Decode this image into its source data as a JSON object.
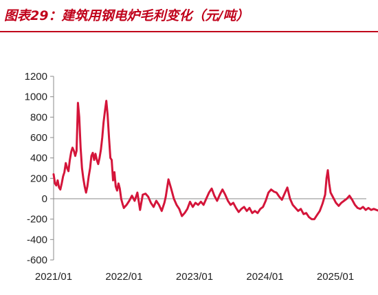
{
  "title": "图表29：建筑用钢电炉毛利变化（元/吨）",
  "colors": {
    "title": "#c0001a",
    "series": "#d4153a",
    "axis": "#888888"
  },
  "chart_data": {
    "type": "line",
    "title": "图表29：建筑用钢电炉毛利变化（元/吨）",
    "xlabel": "",
    "ylabel": "",
    "ylim": [
      -600,
      1200
    ],
    "grid": false,
    "y_ticks": [
      "1200",
      "1000",
      "800",
      "600",
      "400",
      "200",
      "0",
      "-200",
      "-400",
      "-600"
    ],
    "x_ticks": [
      "2021/01",
      "2022/01",
      "2023/01",
      "2024/01",
      "2025/01"
    ],
    "series": [
      {
        "points": [
          [
            "2021-01-01",
            240
          ],
          [
            "2021-01-08",
            150
          ],
          [
            "2021-01-15",
            130
          ],
          [
            "2021-01-22",
            180
          ],
          [
            "2021-01-29",
            110
          ],
          [
            "2021-02-05",
            90
          ],
          [
            "2021-02-12",
            150
          ],
          [
            "2021-02-19",
            220
          ],
          [
            "2021-02-26",
            260
          ],
          [
            "2021-03-05",
            350
          ],
          [
            "2021-03-12",
            300
          ],
          [
            "2021-03-19",
            270
          ],
          [
            "2021-03-26",
            380
          ],
          [
            "2021-04-02",
            460
          ],
          [
            "2021-04-09",
            500
          ],
          [
            "2021-04-16",
            470
          ],
          [
            "2021-04-23",
            420
          ],
          [
            "2021-04-30",
            470
          ],
          [
            "2021-05-07",
            940
          ],
          [
            "2021-05-14",
            800
          ],
          [
            "2021-05-21",
            500
          ],
          [
            "2021-05-28",
            300
          ],
          [
            "2021-06-04",
            200
          ],
          [
            "2021-06-11",
            120
          ],
          [
            "2021-06-18",
            60
          ],
          [
            "2021-06-25",
            120
          ],
          [
            "2021-07-02",
            220
          ],
          [
            "2021-07-09",
            300
          ],
          [
            "2021-07-16",
            420
          ],
          [
            "2021-07-23",
            450
          ],
          [
            "2021-07-30",
            380
          ],
          [
            "2021-08-06",
            440
          ],
          [
            "2021-08-13",
            380
          ],
          [
            "2021-08-20",
            340
          ],
          [
            "2021-08-27",
            400
          ],
          [
            "2021-09-03",
            480
          ],
          [
            "2021-09-10",
            600
          ],
          [
            "2021-09-17",
            750
          ],
          [
            "2021-09-24",
            860
          ],
          [
            "2021-10-01",
            960
          ],
          [
            "2021-10-08",
            820
          ],
          [
            "2021-10-15",
            600
          ],
          [
            "2021-10-22",
            400
          ],
          [
            "2021-10-29",
            380
          ],
          [
            "2021-11-05",
            180
          ],
          [
            "2021-11-12",
            260
          ],
          [
            "2021-11-19",
            120
          ],
          [
            "2021-11-26",
            80
          ],
          [
            "2021-12-03",
            150
          ],
          [
            "2021-12-10",
            100
          ],
          [
            "2021-12-17",
            0
          ],
          [
            "2021-12-24",
            -50
          ],
          [
            "2021-12-31",
            -90
          ],
          [
            "2022-01-14",
            -60
          ],
          [
            "2022-01-28",
            -20
          ],
          [
            "2022-02-11",
            30
          ],
          [
            "2022-02-25",
            -20
          ],
          [
            "2022-03-11",
            60
          ],
          [
            "2022-03-25",
            -110
          ],
          [
            "2022-04-08",
            40
          ],
          [
            "2022-04-22",
            50
          ],
          [
            "2022-05-06",
            20
          ],
          [
            "2022-05-20",
            -40
          ],
          [
            "2022-06-03",
            -80
          ],
          [
            "2022-06-17",
            -20
          ],
          [
            "2022-07-01",
            -60
          ],
          [
            "2022-07-15",
            -120
          ],
          [
            "2022-07-29",
            -40
          ],
          [
            "2022-08-05",
            20
          ],
          [
            "2022-08-19",
            190
          ],
          [
            "2022-09-02",
            100
          ],
          [
            "2022-09-16",
            0
          ],
          [
            "2022-09-30",
            -60
          ],
          [
            "2022-10-14",
            -100
          ],
          [
            "2022-10-28",
            -170
          ],
          [
            "2022-11-11",
            -140
          ],
          [
            "2022-11-25",
            -100
          ],
          [
            "2022-12-09",
            -30
          ],
          [
            "2022-12-23",
            -80
          ],
          [
            "2023-01-06",
            -40
          ],
          [
            "2023-01-20",
            -60
          ],
          [
            "2023-02-03",
            -30
          ],
          [
            "2023-02-17",
            -60
          ],
          [
            "2023-03-03",
            0
          ],
          [
            "2023-03-17",
            60
          ],
          [
            "2023-03-31",
            100
          ],
          [
            "2023-04-14",
            30
          ],
          [
            "2023-04-28",
            -20
          ],
          [
            "2023-05-12",
            40
          ],
          [
            "2023-05-26",
            90
          ],
          [
            "2023-06-09",
            40
          ],
          [
            "2023-06-23",
            -20
          ],
          [
            "2023-07-07",
            -60
          ],
          [
            "2023-07-21",
            -40
          ],
          [
            "2023-08-04",
            -90
          ],
          [
            "2023-08-18",
            -130
          ],
          [
            "2023-09-01",
            -100
          ],
          [
            "2023-09-15",
            -80
          ],
          [
            "2023-09-29",
            -120
          ],
          [
            "2023-10-13",
            -90
          ],
          [
            "2023-10-27",
            -140
          ],
          [
            "2023-11-10",
            -120
          ],
          [
            "2023-11-24",
            -140
          ],
          [
            "2023-12-08",
            -100
          ],
          [
            "2023-12-22",
            -80
          ],
          [
            "2024-01-05",
            -20
          ],
          [
            "2024-01-19",
            60
          ],
          [
            "2024-02-02",
            90
          ],
          [
            "2024-02-16",
            70
          ],
          [
            "2024-03-01",
            60
          ],
          [
            "2024-03-15",
            20
          ],
          [
            "2024-03-29",
            -10
          ],
          [
            "2024-04-12",
            50
          ],
          [
            "2024-04-26",
            110
          ],
          [
            "2024-05-10",
            0
          ],
          [
            "2024-05-24",
            -60
          ],
          [
            "2024-06-07",
            -90
          ],
          [
            "2024-06-21",
            -120
          ],
          [
            "2024-07-05",
            -100
          ],
          [
            "2024-07-19",
            -150
          ],
          [
            "2024-08-02",
            -140
          ],
          [
            "2024-08-16",
            -180
          ],
          [
            "2024-08-30",
            -200
          ],
          [
            "2024-09-13",
            -200
          ],
          [
            "2024-09-27",
            -160
          ],
          [
            "2024-10-11",
            -120
          ],
          [
            "2024-10-25",
            -50
          ],
          [
            "2024-11-08",
            40
          ],
          [
            "2024-11-15",
            200
          ],
          [
            "2024-11-22",
            280
          ],
          [
            "2024-11-29",
            150
          ],
          [
            "2024-12-06",
            60
          ],
          [
            "2024-12-20",
            10
          ],
          [
            "2025-01-03",
            -40
          ],
          [
            "2025-01-17",
            -70
          ],
          [
            "2025-01-31",
            -40
          ],
          [
            "2025-02-14",
            -20
          ],
          [
            "2025-02-28",
            0
          ],
          [
            "2025-03-14",
            30
          ],
          [
            "2025-03-28",
            -10
          ],
          [
            "2025-04-11",
            -60
          ],
          [
            "2025-04-25",
            -90
          ],
          [
            "2025-05-09",
            -100
          ],
          [
            "2025-05-23",
            -80
          ],
          [
            "2025-06-06",
            -110
          ],
          [
            "2025-06-20",
            -90
          ],
          [
            "2025-07-04",
            -110
          ],
          [
            "2025-07-18",
            -100
          ],
          [
            "2025-08-01",
            -110
          ],
          [
            "2025-08-15",
            -120
          ],
          [
            "2025-08-29",
            -130
          ]
        ]
      }
    ]
  }
}
